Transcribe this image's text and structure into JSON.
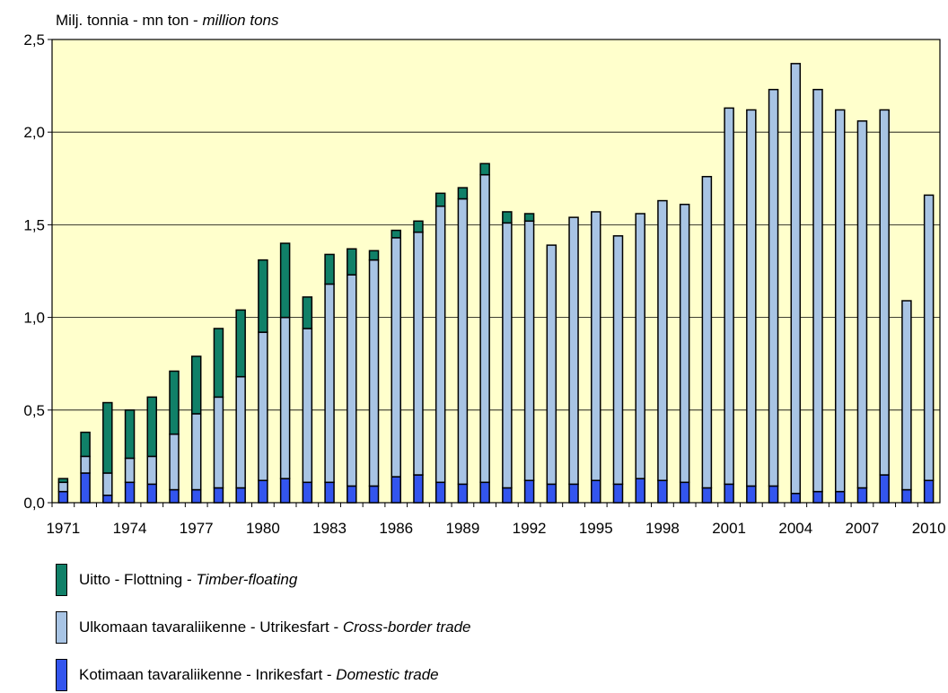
{
  "chart_data": {
    "type": "bar",
    "stacked": true,
    "unit_label": {
      "plain": "Milj. tonnia - mn ton - ",
      "italic": "million tons"
    },
    "ylim": [
      0,
      2.5
    ],
    "yticks": [
      "0,0",
      "0,5",
      "1,0",
      "1,5",
      "2,0",
      "2,5"
    ],
    "ytick_values": [
      0,
      0.5,
      1.0,
      1.5,
      2.0,
      2.5
    ],
    "x_tick_labels": [
      "1971",
      "1974",
      "1977",
      "1980",
      "1983",
      "1986",
      "1989",
      "1992",
      "1995",
      "1998",
      "2001",
      "2004",
      "2007",
      "2010"
    ],
    "categories": [
      1971,
      1972,
      1973,
      1974,
      1975,
      1976,
      1977,
      1978,
      1979,
      1980,
      1981,
      1982,
      1983,
      1984,
      1985,
      1986,
      1987,
      1988,
      1989,
      1990,
      1991,
      1992,
      1993,
      1994,
      1995,
      1996,
      1997,
      1998,
      1999,
      2000,
      2001,
      2002,
      2003,
      2004,
      2005,
      2006,
      2007,
      2008,
      2009,
      2010
    ],
    "series": [
      {
        "name_plain": "Kotimaan tavaraliikenne - Inrikesfart - ",
        "name_italic": "Domestic trade",
        "color": "#3355ee",
        "values": [
          0.06,
          0.16,
          0.04,
          0.11,
          0.1,
          0.07,
          0.07,
          0.08,
          0.08,
          0.12,
          0.13,
          0.11,
          0.11,
          0.09,
          0.09,
          0.14,
          0.15,
          0.11,
          0.1,
          0.11,
          0.08,
          0.12,
          0.1,
          0.1,
          0.12,
          0.1,
          0.13,
          0.12,
          0.11,
          0.08,
          0.1,
          0.09,
          0.09,
          0.05,
          0.06,
          0.06,
          0.08,
          0.15,
          0.07,
          0.12
        ]
      },
      {
        "name_plain": "Ulkomaan tavaraliikenne - Utrikesfart - ",
        "name_italic": "Cross-border trade",
        "color": "#a8c4e4",
        "values": [
          0.05,
          0.09,
          0.12,
          0.13,
          0.15,
          0.3,
          0.41,
          0.49,
          0.6,
          0.8,
          0.87,
          0.83,
          1.07,
          1.14,
          1.22,
          1.29,
          1.31,
          1.49,
          1.54,
          1.66,
          1.43,
          1.4,
          1.29,
          1.44,
          1.45,
          1.34,
          1.43,
          1.51,
          1.5,
          1.68,
          2.03,
          2.03,
          2.14,
          2.32,
          2.17,
          2.06,
          1.98,
          1.97,
          1.02,
          1.54
        ]
      },
      {
        "name_plain": "Uitto - Flottning - ",
        "name_italic": "Timber-floating",
        "color": "#108068",
        "values": [
          0.02,
          0.13,
          0.38,
          0.26,
          0.32,
          0.34,
          0.31,
          0.37,
          0.36,
          0.39,
          0.4,
          0.17,
          0.16,
          0.14,
          0.05,
          0.04,
          0.06,
          0.07,
          0.06,
          0.06,
          0.06,
          0.04,
          0,
          0,
          0,
          0,
          0,
          0,
          0,
          0,
          0,
          0,
          0,
          0,
          0,
          0,
          0,
          0,
          0,
          0
        ]
      }
    ],
    "grid": true,
    "background_color": "#ffffcc",
    "legend_position": "bottom-left"
  }
}
